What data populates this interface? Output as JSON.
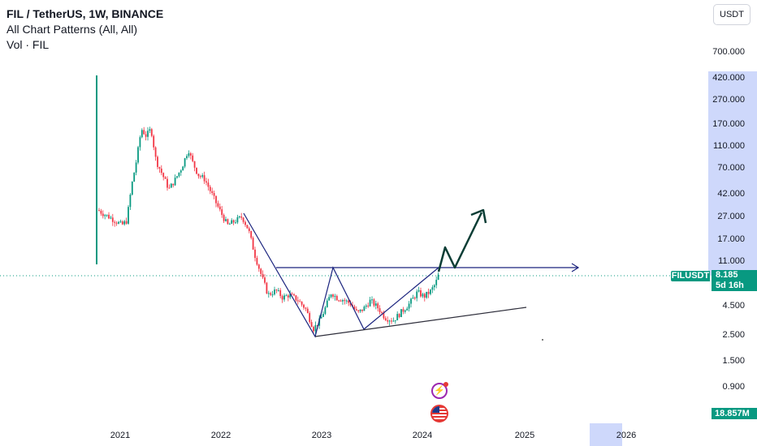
{
  "header": {
    "symbol": "FIL / TetherUS, 1W, BINANCE",
    "indicator": "All Chart Patterns (All, All)",
    "volume": "Vol · FIL"
  },
  "currency_button": "USDT",
  "colors": {
    "up": "#089981",
    "down": "#f23645",
    "pattern": "#1a237e",
    "highlight": "#c9d4fb",
    "arrow": "#0b3d35"
  },
  "tags": {
    "symbol": "FILUSDT",
    "price": "8.185",
    "countdown": "5d 16h",
    "volume": "18.857M"
  },
  "icons": {
    "events": "lightning-icon",
    "economy": "us-flag-icon"
  },
  "chart_data": {
    "type": "candlestick",
    "scale": "log",
    "yticks": [
      "700.000",
      "420.000",
      "270.000",
      "170.000",
      "110.000",
      "70.000",
      "42.000",
      "27.000",
      "17.000",
      "11.000",
      "4.500",
      "2.500",
      "1.500",
      "0.900"
    ],
    "xticks": [
      "2021",
      "2022",
      "2023",
      "2024",
      "2025",
      "2026"
    ],
    "last_price": 8.185,
    "series_hint": "FIL/USDT weekly closes 2020-10 to 2024-03"
  }
}
